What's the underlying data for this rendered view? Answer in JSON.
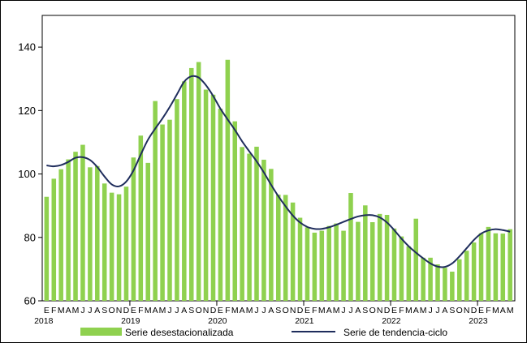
{
  "chart_data": {
    "type": "bar",
    "title": "",
    "xlabel": "",
    "ylabel": "",
    "ylim": [
      60,
      150
    ],
    "yticks": [
      60,
      80,
      100,
      120,
      140
    ],
    "grid": false,
    "legend_placement": "bottom",
    "colors": {
      "bars": "#8fd14f",
      "line": "#1f2d5c",
      "axis": "#000000"
    },
    "month_labels": [
      "E",
      "F",
      "M",
      "A",
      "M",
      "J",
      "J",
      "A",
      "S",
      "O",
      "N",
      "D"
    ],
    "years": [
      "2018",
      "2019",
      "2020",
      "2021",
      "2022",
      "2023"
    ],
    "series": [
      {
        "name": "Serie desestacionalizada",
        "kind": "bar",
        "values": [
          92.8,
          98.5,
          101.5,
          104.6,
          107,
          109.2,
          102.1,
          102.5,
          97,
          94.1,
          93.6,
          96,
          105.2,
          112.1,
          103.5,
          123,
          115.6,
          117.1,
          123.6,
          129.2,
          133.4,
          135.3,
          126.6,
          125,
          120.6,
          136,
          116.6,
          108.5,
          106.4,
          108.6,
          104.5,
          101.6,
          93.5,
          93.4,
          91,
          86.2,
          83.2,
          81.5,
          82.1,
          83.6,
          84.4,
          82.1,
          94,
          84.9,
          90.1,
          84.8,
          87.4,
          87.1,
          82.8,
          80.3,
          77.2,
          85.9,
          73.6,
          73.6,
          71.5,
          70.4,
          69.2,
          73.1,
          75.8,
          78.4,
          81.3,
          83.3,
          81.3,
          81.2,
          82.6
        ]
      },
      {
        "name": "Serie de tendencia-ciclo",
        "kind": "line",
        "values": [
          102.7,
          102.4,
          102.8,
          103.8,
          105.1,
          105.3,
          104.4,
          102.2,
          99.2,
          96.7,
          96.1,
          97.6,
          101.1,
          106.1,
          110.8,
          114.3,
          117.5,
          121.1,
          125.1,
          129.1,
          130.8,
          130.4,
          128,
          124.6,
          120.6,
          117.2,
          113.9,
          110.3,
          107.1,
          104,
          100.5,
          96.6,
          93,
          89.8,
          86.9,
          84.7,
          83.3,
          82.7,
          82.7,
          83.2,
          84,
          84.9,
          85.8,
          86.6,
          87,
          87,
          86.3,
          84.7,
          82.3,
          79.6,
          77.2,
          75.2,
          73.4,
          71.8,
          70.8,
          70.7,
          71.8,
          74,
          76.6,
          79.2,
          81.2,
          82.2,
          82.6,
          82.3,
          81.8
        ]
      }
    ]
  }
}
